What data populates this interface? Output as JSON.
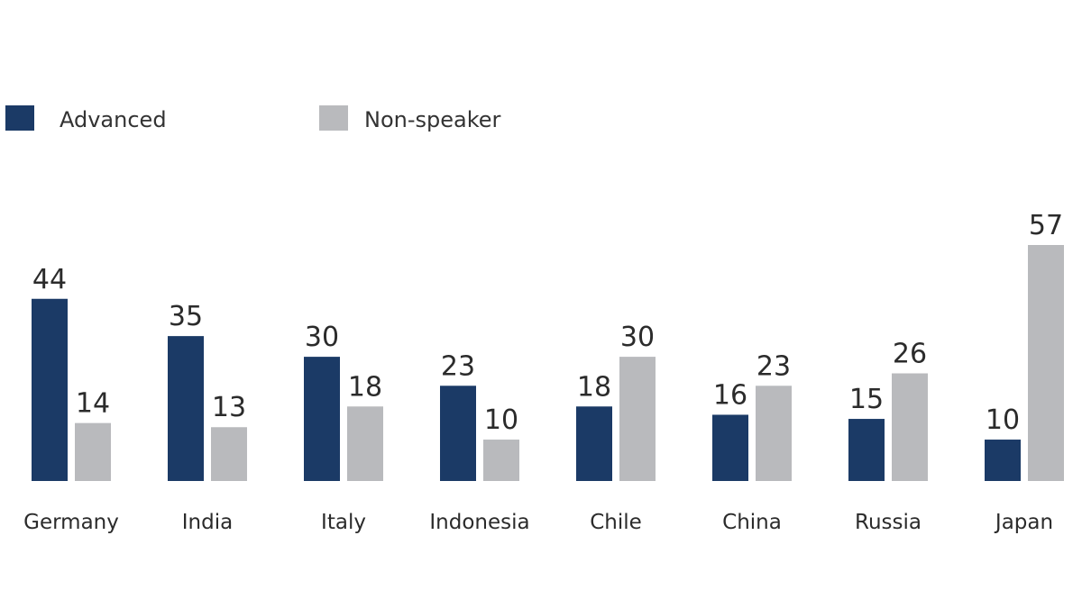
{
  "chart_data": {
    "type": "bar",
    "categories": [
      "Germany",
      "India",
      "Italy",
      "Indonesia",
      "Chile",
      "China",
      "Russia",
      "Japan"
    ],
    "series": [
      {
        "name": "Advanced",
        "color": "#1b3a66",
        "values": [
          44,
          35,
          30,
          23,
          18,
          16,
          15,
          10
        ]
      },
      {
        "name": "Non-speaker",
        "color": "#b9babd",
        "values": [
          14,
          13,
          18,
          10,
          30,
          23,
          26,
          57
        ]
      }
    ],
    "ylim": [
      0,
      57
    ],
    "grid": false,
    "legend_position": "top-left",
    "title": "",
    "xlabel": "",
    "ylabel": ""
  }
}
